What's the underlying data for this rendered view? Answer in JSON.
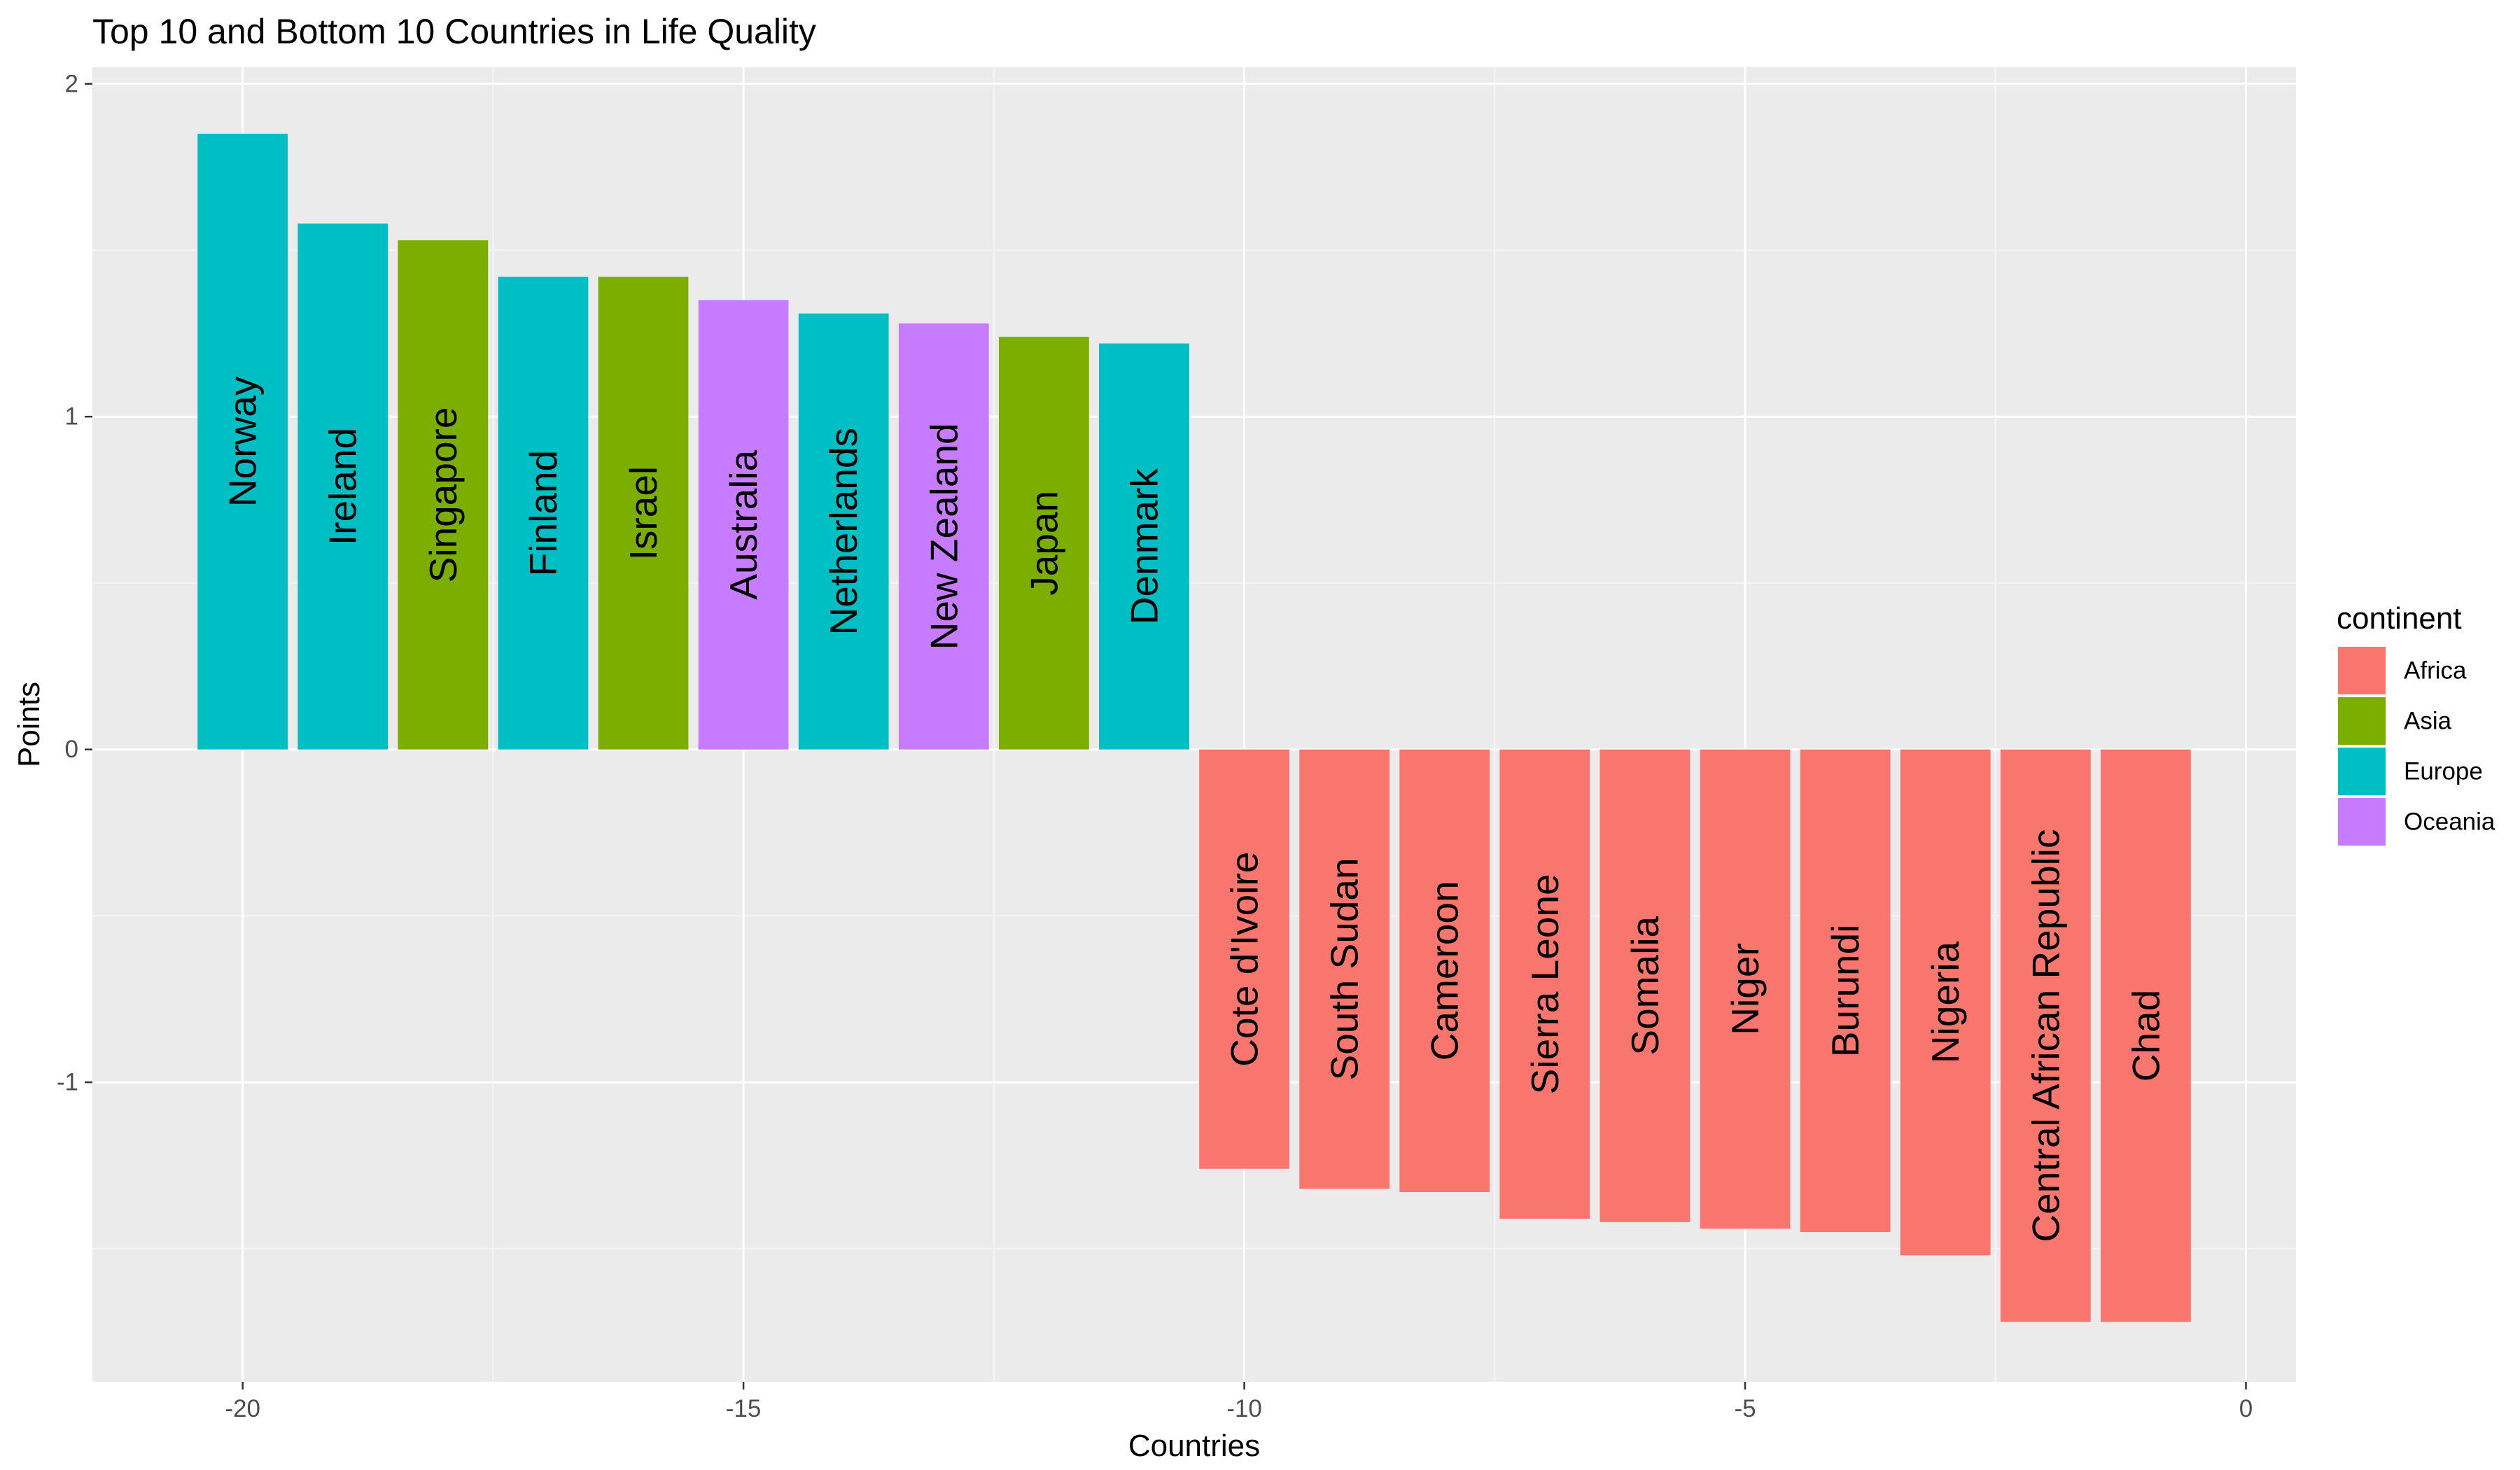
{
  "chart_data": {
    "type": "bar",
    "title": "Top 10 and Bottom 10 Countries in Life Quality",
    "xlabel": "Countries",
    "ylabel": "Points",
    "xlim": [
      -21.5,
      0.5
    ],
    "ylim": [
      -1.9,
      2.05
    ],
    "x_ticks": [
      -20,
      -15,
      -10,
      -5,
      0
    ],
    "y_ticks": [
      -1,
      0,
      1,
      2
    ],
    "grid": true,
    "legend": {
      "title": "continent",
      "position": "right",
      "entries": [
        {
          "name": "Africa",
          "color": "#F8766D"
        },
        {
          "name": "Asia",
          "color": "#7CAE00"
        },
        {
          "name": "Europe",
          "color": "#00BFC4"
        },
        {
          "name": "Oceania",
          "color": "#C77CFF"
        }
      ]
    },
    "bars": [
      {
        "x": -20,
        "value": 1.85,
        "label": "Norway",
        "continent": "Europe"
      },
      {
        "x": -19,
        "value": 1.58,
        "label": "Ireland",
        "continent": "Europe"
      },
      {
        "x": -18,
        "value": 1.53,
        "label": "Singapore",
        "continent": "Asia"
      },
      {
        "x": -17,
        "value": 1.42,
        "label": "Finland",
        "continent": "Europe"
      },
      {
        "x": -16,
        "value": 1.42,
        "label": "Israel",
        "continent": "Asia"
      },
      {
        "x": -15,
        "value": 1.35,
        "label": "Australia",
        "continent": "Oceania"
      },
      {
        "x": -14,
        "value": 1.31,
        "label": "Netherlands",
        "continent": "Europe"
      },
      {
        "x": -13,
        "value": 1.28,
        "label": "New Zealand",
        "continent": "Oceania"
      },
      {
        "x": -12,
        "value": 1.24,
        "label": "Japan",
        "continent": "Asia"
      },
      {
        "x": -11,
        "value": 1.22,
        "label": "Denmark",
        "continent": "Europe"
      },
      {
        "x": -10,
        "value": -1.26,
        "label": "Cote d'Ivoire",
        "continent": "Africa"
      },
      {
        "x": -9,
        "value": -1.32,
        "label": "South Sudan",
        "continent": "Africa"
      },
      {
        "x": -8,
        "value": -1.33,
        "label": "Cameroon",
        "continent": "Africa"
      },
      {
        "x": -7,
        "value": -1.41,
        "label": "Sierra Leone",
        "continent": "Africa"
      },
      {
        "x": -6,
        "value": -1.42,
        "label": "Somalia",
        "continent": "Africa"
      },
      {
        "x": -5,
        "value": -1.44,
        "label": "Niger",
        "continent": "Africa"
      },
      {
        "x": -4,
        "value": -1.45,
        "label": "Burundi",
        "continent": "Africa"
      },
      {
        "x": -3,
        "value": -1.52,
        "label": "Nigeria",
        "continent": "Africa"
      },
      {
        "x": -2,
        "value": -1.72,
        "label": "Central African Republic",
        "continent": "Africa"
      },
      {
        "x": -1,
        "value": -1.72,
        "label": "Chad",
        "continent": "Africa"
      }
    ]
  }
}
